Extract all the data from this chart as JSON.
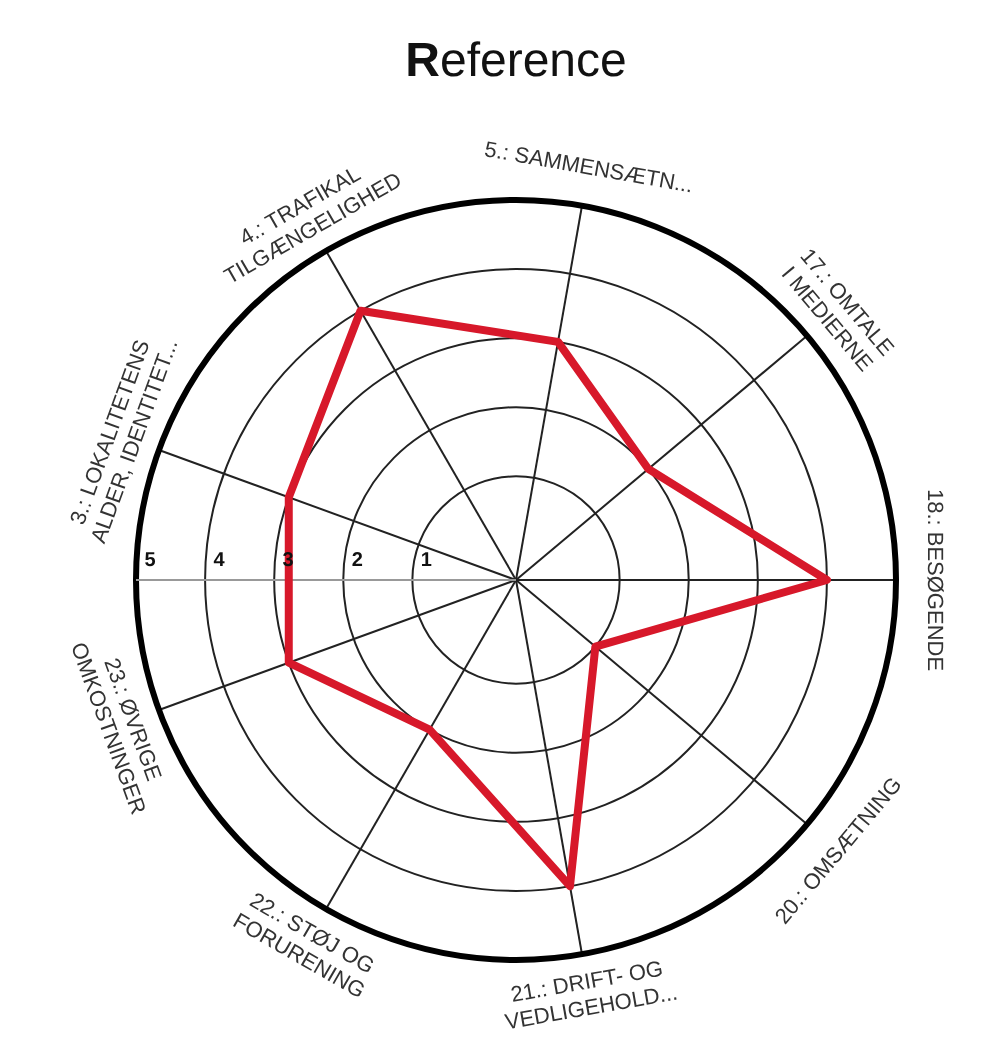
{
  "chart_data": {
    "type": "radar",
    "title": "Reference",
    "categories": [
      "5.: SAMMENSÆTN...",
      "17.: OMTALE I MEDIERNE",
      "18.: BESØGENDE",
      "20.: OMSÆTNING",
      "21.: DRIFT- OG VEDLIGEHOLD...",
      "22.: STØJ OG FORURENING",
      "23.: ØVRIGE OMKOSTNINGER",
      "3.: LOKALITETENS ALDER, IDENTITET...",
      "4.: TRAFIKAL TILGÆNGELIGHED"
    ],
    "values": [
      3,
      2,
      4,
      1,
      4,
      2,
      3,
      3,
      4
    ],
    "color": "#d7182a",
    "ylim": [
      -0.5,
      5
    ],
    "yticks": [
      1,
      2,
      3,
      4,
      5
    ],
    "grid": true
  }
}
